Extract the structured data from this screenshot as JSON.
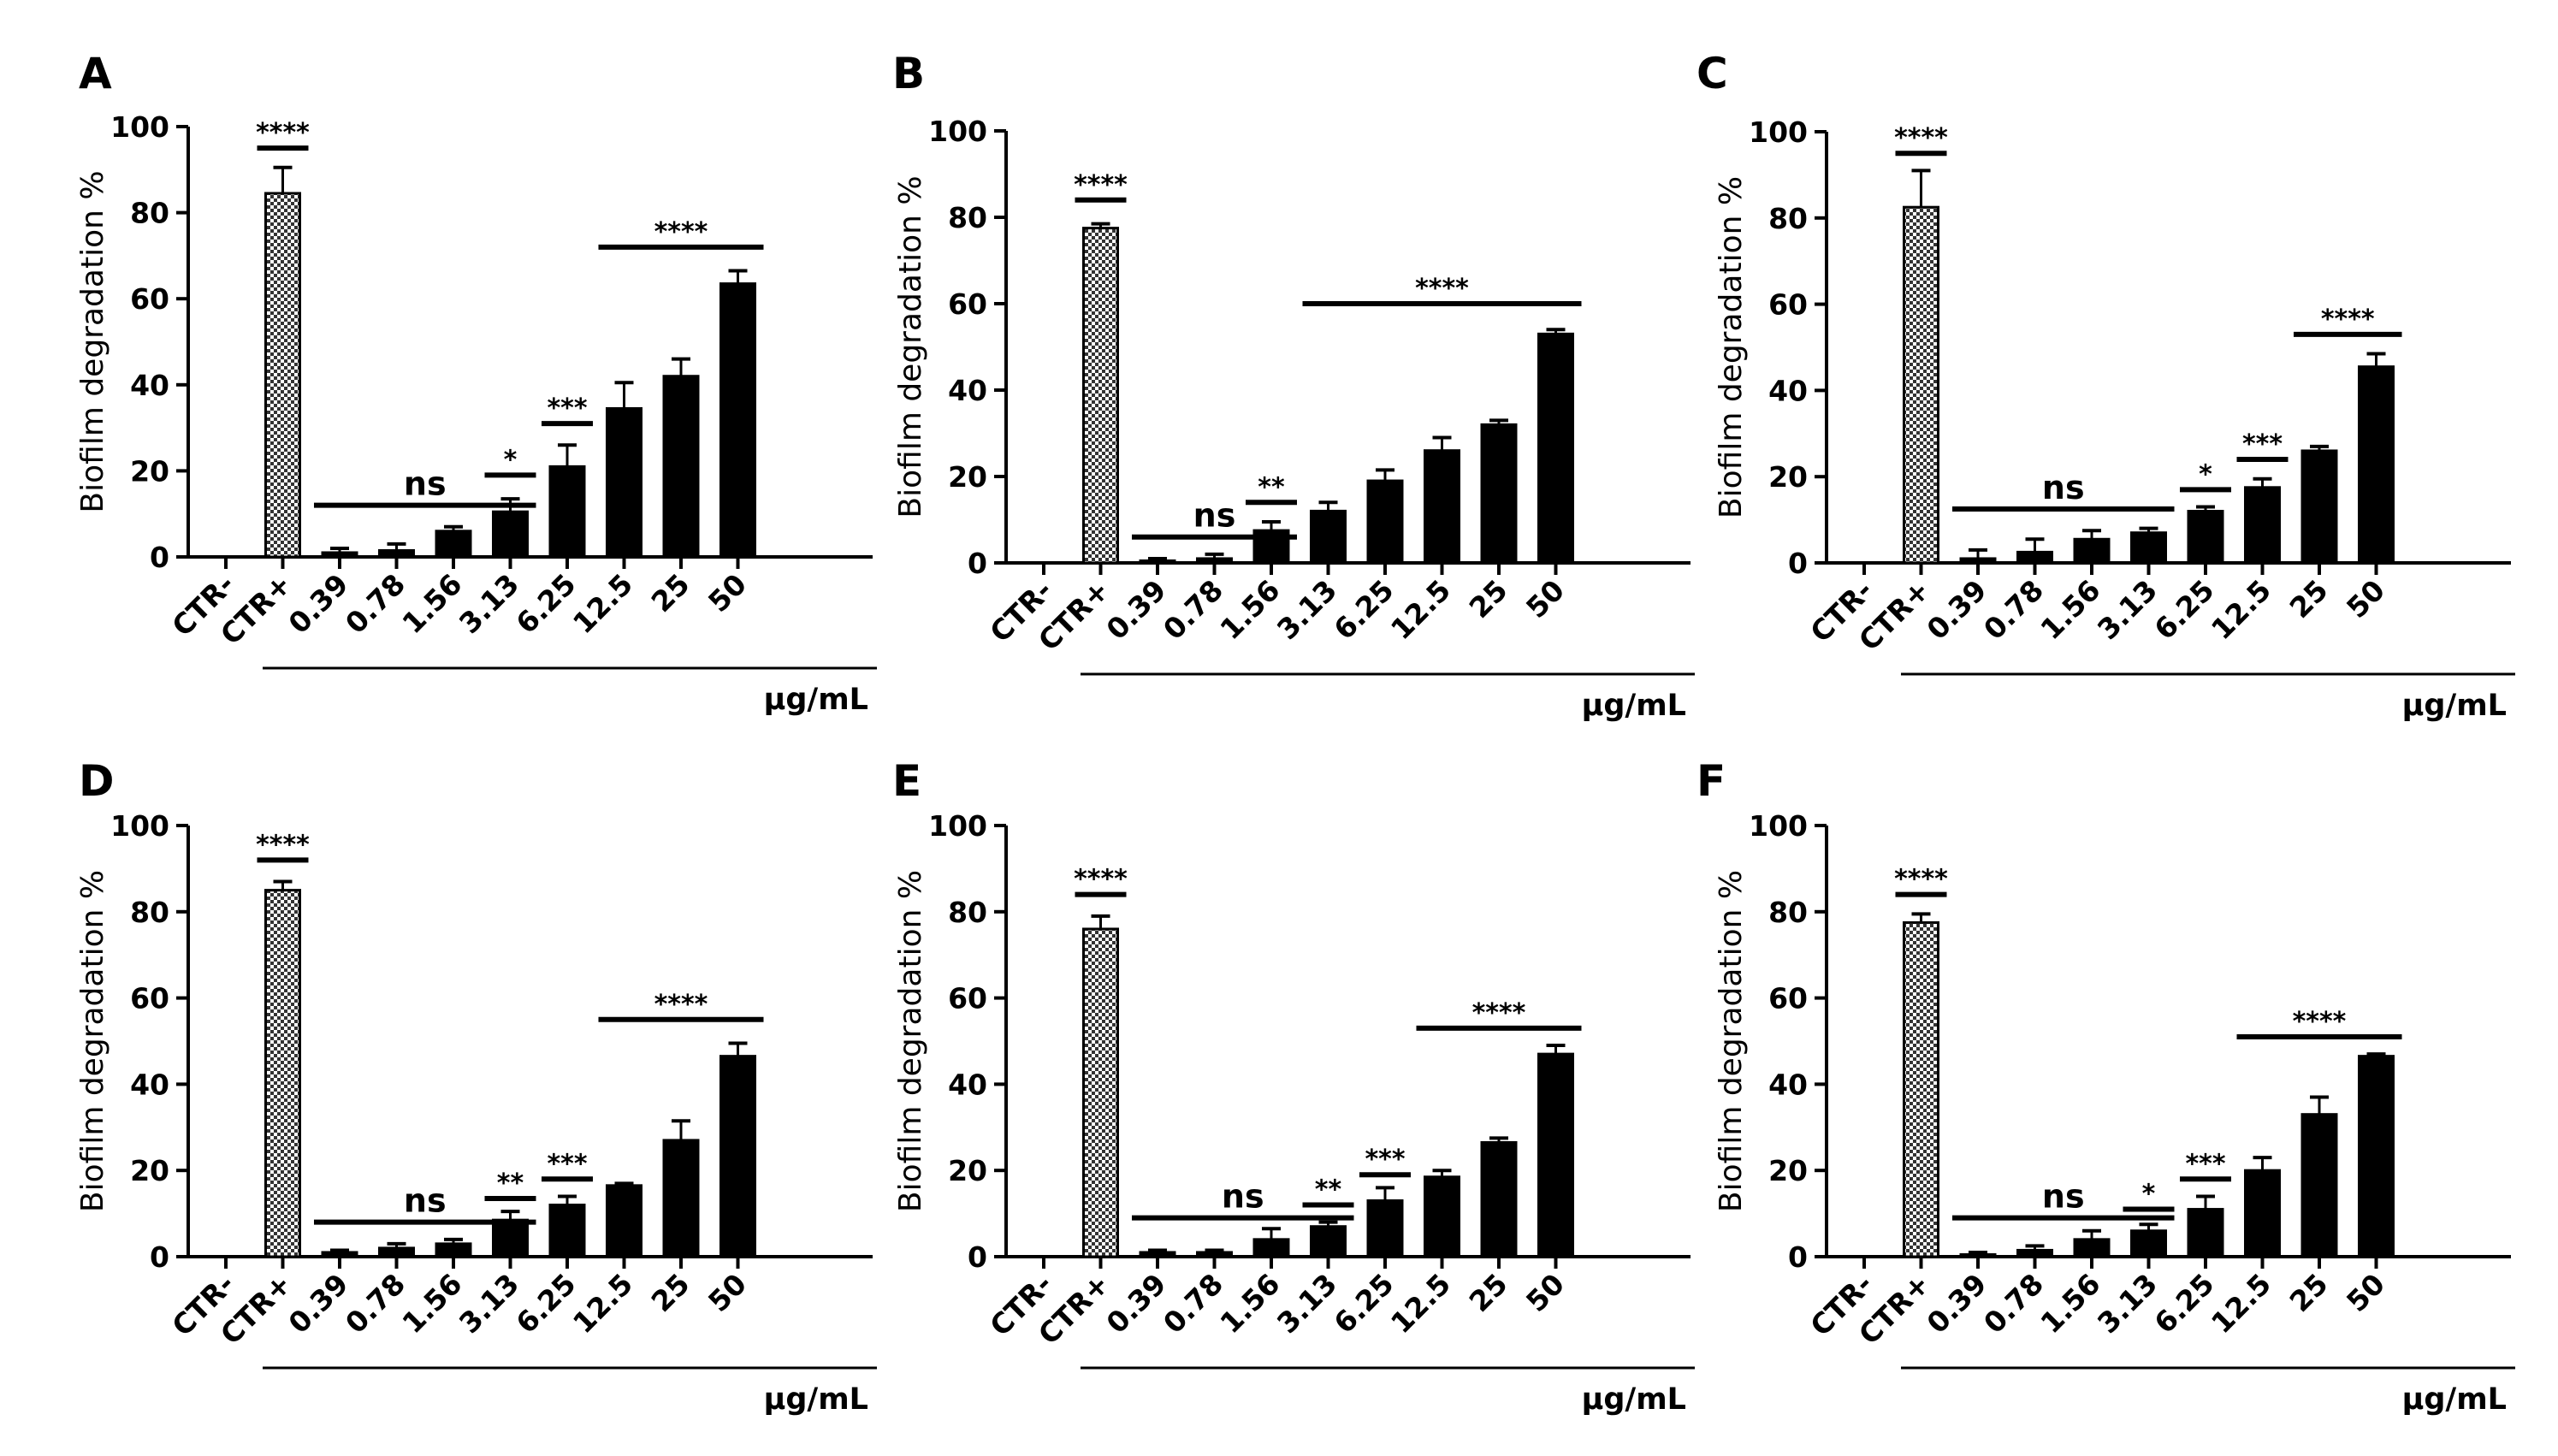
{
  "chart_data": [
    {
      "panel": "A",
      "type": "bar",
      "ylabel": "Biofilm degradation %",
      "xunit": "μg/mL",
      "ylim": [
        0,
        100
      ],
      "yticks": [
        0,
        20,
        40,
        60,
        80,
        100
      ],
      "categories": [
        "CTR-",
        "CTR+",
        "0.39",
        "0.78",
        "1.56",
        "3.13",
        "6.25",
        "12.5",
        "25",
        "50"
      ],
      "values": [
        0,
        84.5,
        1,
        1.5,
        6,
        10.5,
        21,
        34.5,
        42,
        63.5
      ],
      "errors": [
        0,
        6,
        1,
        1.5,
        1,
        3,
        5,
        6,
        4,
        3
      ],
      "significance": [
        {
          "label": "****",
          "from": 1,
          "to": 1,
          "y": 95
        },
        {
          "label": "ns",
          "from": 2,
          "to": 5,
          "y": 12
        },
        {
          "label": "*",
          "from": 5,
          "to": 5,
          "y": 19
        },
        {
          "label": "***",
          "from": 6,
          "to": 6,
          "y": 31
        },
        {
          "label": "****",
          "from": 7,
          "to": 9,
          "y": 72
        }
      ]
    },
    {
      "panel": "B",
      "type": "bar",
      "ylabel": "Biofilm degradation %",
      "xunit": "μg/mL",
      "ylim": [
        0,
        100
      ],
      "yticks": [
        0,
        20,
        40,
        60,
        80,
        100
      ],
      "categories": [
        "CTR-",
        "CTR+",
        "0.39",
        "0.78",
        "1.56",
        "3.13",
        "6.25",
        "12.5",
        "25",
        "50"
      ],
      "values": [
        0,
        77.5,
        0.5,
        1,
        7.5,
        12,
        19,
        26,
        32,
        53
      ],
      "errors": [
        0,
        1,
        0.5,
        1,
        2,
        2,
        2.5,
        3,
        1,
        1
      ],
      "significance": [
        {
          "label": "****",
          "from": 1,
          "to": 1,
          "y": 84
        },
        {
          "label": "ns",
          "from": 2,
          "to": 4,
          "y": 6
        },
        {
          "label": "**",
          "from": 4,
          "to": 4,
          "y": 14
        },
        {
          "label": "****",
          "from": 5,
          "to": 9,
          "y": 60
        }
      ]
    },
    {
      "panel": "C",
      "type": "bar",
      "ylabel": "Biofilm degradation %",
      "xunit": "μg/mL",
      "ylim": [
        0,
        100
      ],
      "yticks": [
        0,
        20,
        40,
        60,
        80,
        100
      ],
      "categories": [
        "CTR-",
        "CTR+",
        "0.39",
        "0.78",
        "1.56",
        "3.13",
        "6.25",
        "12.5",
        "25",
        "50"
      ],
      "values": [
        0,
        82.5,
        1,
        2.5,
        5.5,
        7,
        12,
        17.5,
        26,
        45.5
      ],
      "errors": [
        0,
        8.5,
        2,
        3,
        2,
        1,
        1,
        2,
        1,
        3
      ],
      "significance": [
        {
          "label": "****",
          "from": 1,
          "to": 1,
          "y": 95
        },
        {
          "label": "ns",
          "from": 2,
          "to": 5,
          "y": 12.5
        },
        {
          "label": "*",
          "from": 6,
          "to": 6,
          "y": 17
        },
        {
          "label": "***",
          "from": 7,
          "to": 7,
          "y": 24
        },
        {
          "label": "****",
          "from": 8,
          "to": 9,
          "y": 53
        }
      ]
    },
    {
      "panel": "D",
      "type": "bar",
      "ylabel": "Biofilm degradation %",
      "xunit": "μg/mL",
      "ylim": [
        0,
        100
      ],
      "yticks": [
        0,
        20,
        40,
        60,
        80,
        100
      ],
      "categories": [
        "CTR-",
        "CTR+",
        "0.39",
        "0.78",
        "1.56",
        "3.13",
        "6.25",
        "12.5",
        "25",
        "50"
      ],
      "values": [
        0,
        85,
        1,
        2,
        3,
        8.5,
        12,
        16.5,
        27,
        46.5
      ],
      "errors": [
        0,
        2,
        0.5,
        1,
        1,
        2,
        2,
        0.5,
        4.5,
        3
      ],
      "significance": [
        {
          "label": "****",
          "from": 1,
          "to": 1,
          "y": 92
        },
        {
          "label": "ns",
          "from": 2,
          "to": 5,
          "y": 8
        },
        {
          "label": "**",
          "from": 5,
          "to": 5,
          "y": 13.5
        },
        {
          "label": "***",
          "from": 6,
          "to": 6,
          "y": 18
        },
        {
          "label": "****",
          "from": 7,
          "to": 9,
          "y": 55
        }
      ]
    },
    {
      "panel": "E",
      "type": "bar",
      "ylabel": "Biofilm degradation %",
      "xunit": "μg/mL",
      "ylim": [
        0,
        100
      ],
      "yticks": [
        0,
        20,
        40,
        60,
        80,
        100
      ],
      "categories": [
        "CTR-",
        "CTR+",
        "0.39",
        "0.78",
        "1.56",
        "3.13",
        "6.25",
        "12.5",
        "25",
        "50"
      ],
      "values": [
        0,
        76,
        1,
        1,
        4,
        7,
        13,
        18.5,
        26.5,
        47
      ],
      "errors": [
        0,
        3,
        0.5,
        0.5,
        2.5,
        1,
        3,
        1.5,
        1,
        2
      ],
      "significance": [
        {
          "label": "****",
          "from": 1,
          "to": 1,
          "y": 84
        },
        {
          "label": "ns",
          "from": 2,
          "to": 5,
          "y": 9
        },
        {
          "label": "**",
          "from": 5,
          "to": 5,
          "y": 12
        },
        {
          "label": "***",
          "from": 6,
          "to": 6,
          "y": 19
        },
        {
          "label": "****",
          "from": 7,
          "to": 9,
          "y": 53
        }
      ]
    },
    {
      "panel": "F",
      "type": "bar",
      "ylabel": "Biofilm degradation %",
      "xunit": "μg/mL",
      "ylim": [
        0,
        100
      ],
      "yticks": [
        0,
        20,
        40,
        60,
        80,
        100
      ],
      "categories": [
        "CTR-",
        "CTR+",
        "0.39",
        "0.78",
        "1.56",
        "3.13",
        "6.25",
        "12.5",
        "25",
        "50"
      ],
      "values": [
        0,
        77.5,
        0.5,
        1.5,
        4,
        6,
        11,
        20,
        33,
        46.5
      ],
      "errors": [
        0,
        2,
        0.5,
        1,
        2,
        1.5,
        3,
        3,
        4,
        0.5
      ],
      "significance": [
        {
          "label": "****",
          "from": 1,
          "to": 1,
          "y": 84
        },
        {
          "label": "ns",
          "from": 2,
          "to": 5,
          "y": 9
        },
        {
          "label": "*",
          "from": 5,
          "to": 5,
          "y": 11
        },
        {
          "label": "***",
          "from": 6,
          "to": 6,
          "y": 18
        },
        {
          "label": "****",
          "from": 7,
          "to": 9,
          "y": 51
        }
      ]
    }
  ]
}
